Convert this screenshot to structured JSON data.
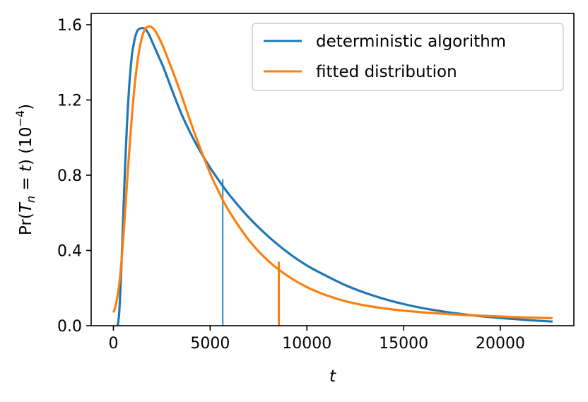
{
  "chart_data": {
    "type": "line",
    "xlabel": "t",
    "ylabel": "Pr(T_n = t) (10^{-4})",
    "ylabel_parts": {
      "prefix": "Pr(",
      "T": "T",
      "n": "n",
      "eq": " = ",
      "t": "t",
      "close": ") (10",
      "exp": "−4",
      "end": ")"
    },
    "xlim": [
      -1150,
      23800
    ],
    "ylim": [
      0,
      1.66
    ],
    "xticks": [
      0,
      5000,
      10000,
      15000,
      20000
    ],
    "xtick_labels": [
      "0",
      "5000",
      "10000",
      "15000",
      "20000"
    ],
    "yticks": [
      0,
      0.4,
      0.8,
      1.2,
      1.6
    ],
    "ytick_labels": [
      "0.0",
      "0.4",
      "0.8",
      "1.2",
      "1.6"
    ],
    "grid": false,
    "legend_position": "top-right",
    "series": [
      {
        "name": "deterministic algorithm",
        "color": "#1f77b4",
        "x": [
          220,
          300,
          400,
          500,
          600,
          700,
          800,
          900,
          1000,
          1200,
          1400,
          1600,
          1800,
          2000,
          2300,
          2600,
          3000,
          3500,
          4000,
          4500,
          5000,
          5500,
          6000,
          7000,
          8000,
          9000,
          10000,
          11000,
          12000,
          13000,
          14000,
          15000,
          16000,
          17000,
          18000,
          19000,
          20000,
          21000,
          22000,
          22700
        ],
        "y": [
          0.0,
          0.07,
          0.28,
          0.56,
          0.84,
          1.07,
          1.25,
          1.38,
          1.47,
          1.56,
          1.58,
          1.58,
          1.555,
          1.51,
          1.44,
          1.37,
          1.26,
          1.13,
          1.02,
          0.925,
          0.84,
          0.765,
          0.695,
          0.575,
          0.475,
          0.39,
          0.32,
          0.265,
          0.215,
          0.175,
          0.142,
          0.115,
          0.093,
          0.076,
          0.062,
          0.05,
          0.041,
          0.033,
          0.026,
          0.022
        ]
      },
      {
        "name": "fitted distribution",
        "color": "#ff7f0e",
        "x": [
          0,
          100,
          200,
          300,
          400,
          500,
          600,
          800,
          1000,
          1200,
          1400,
          1600,
          1800,
          2000,
          2200,
          2500,
          3000,
          3500,
          4000,
          4500,
          5000,
          5500,
          6000,
          7000,
          8000,
          9000,
          10000,
          11000,
          12000,
          13000,
          14000,
          15000,
          16000,
          17000,
          18000,
          19000,
          20000,
          21000,
          22000,
          22700
        ],
        "y": [
          0.07,
          0.1,
          0.15,
          0.22,
          0.32,
          0.45,
          0.6,
          0.9,
          1.17,
          1.37,
          1.5,
          1.57,
          1.59,
          1.585,
          1.56,
          1.5,
          1.37,
          1.23,
          1.08,
          0.94,
          0.81,
          0.7,
          0.605,
          0.455,
          0.345,
          0.265,
          0.205,
          0.162,
          0.13,
          0.108,
          0.092,
          0.08,
          0.071,
          0.064,
          0.058,
          0.053,
          0.049,
          0.045,
          0.042,
          0.04
        ]
      }
    ],
    "vlines": [
      {
        "series": "deterministic algorithm",
        "x": 5650,
        "y_top": 0.78,
        "color": "#1f77b4",
        "width": 2.2,
        "opacity": 0.8
      },
      {
        "series": "fitted distribution",
        "x": 8550,
        "y_top": 0.34,
        "color": "#ff7f0e",
        "width": 3,
        "opacity": 1
      }
    ]
  }
}
